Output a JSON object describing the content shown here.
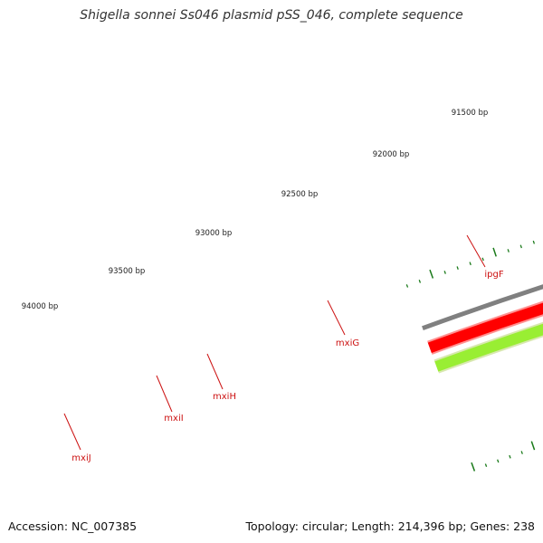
{
  "title": "Shigella sonnei Ss046 plasmid pSS_046, complete sequence",
  "footer": {
    "accession": "Accession: NC_007385",
    "summary": "Topology: circular; Length: 214,396 bp; Genes: 238"
  },
  "colors": {
    "backbone": "#808080",
    "forward_gene": "#ff0000",
    "forward_gene_edge": "#ff9090",
    "reverse_gene_light": "#99ee33",
    "reverse_gene_dark": "#668822",
    "tick": "#1a7a1a",
    "gene_label": "#cc1111"
  },
  "diagram": {
    "type": "circular-genome-map",
    "position_labels": [
      "91500 bp",
      "92000 bp",
      "92500 bp",
      "93000 bp",
      "93500 bp",
      "94000 bp"
    ],
    "genes": [
      {
        "name": "ipgF",
        "strand": "reverse",
        "color": "dark"
      },
      {
        "name": "mxiG",
        "strand": "forward"
      },
      {
        "name": "mxiH",
        "strand": "forward"
      },
      {
        "name": "mxiI",
        "strand": "forward"
      },
      {
        "name": "mxiJ",
        "strand": "reverse",
        "color": "light"
      }
    ]
  }
}
